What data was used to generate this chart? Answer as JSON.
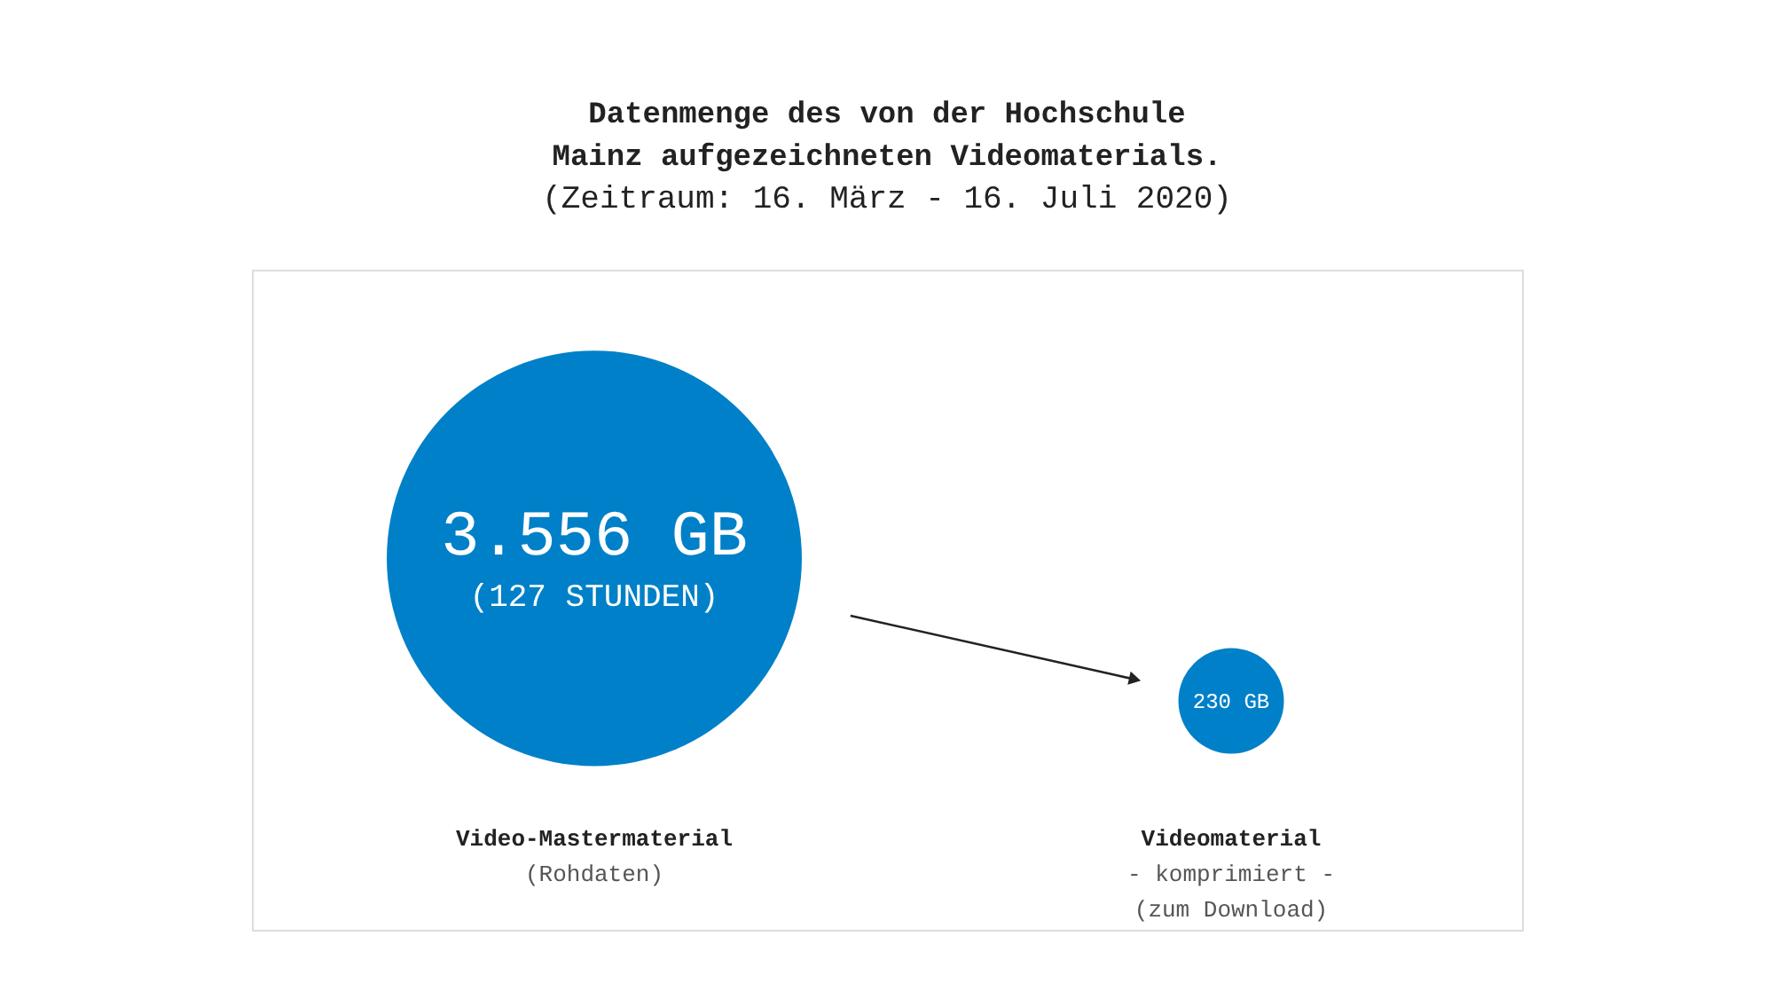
{
  "chart_data": {
    "type": "other",
    "title": "Datenmenge des von der Hochschule Mainz aufgezeichneten Videomaterials.",
    "subtitle": "(Zeitraum: 16. März - 16. Juli 2020)",
    "categories": [
      "Video-Mastermaterial",
      "Videomaterial"
    ],
    "values": [
      3556,
      230
    ],
    "colors": [
      "#0080c8",
      "#0080c8"
    ],
    "value_labels": [
      "3.556 GB\n(127 STUNDEN)",
      "230 GB"
    ],
    "annotations": [
      {
        "text": "(Rohdaten)",
        "x": "Video-Mastermaterial"
      },
      {
        "text": "- komprimiert -",
        "x": "Videomaterial"
      },
      {
        "text": "(zum Download)",
        "x": "Videomaterial"
      }
    ]
  }
}
